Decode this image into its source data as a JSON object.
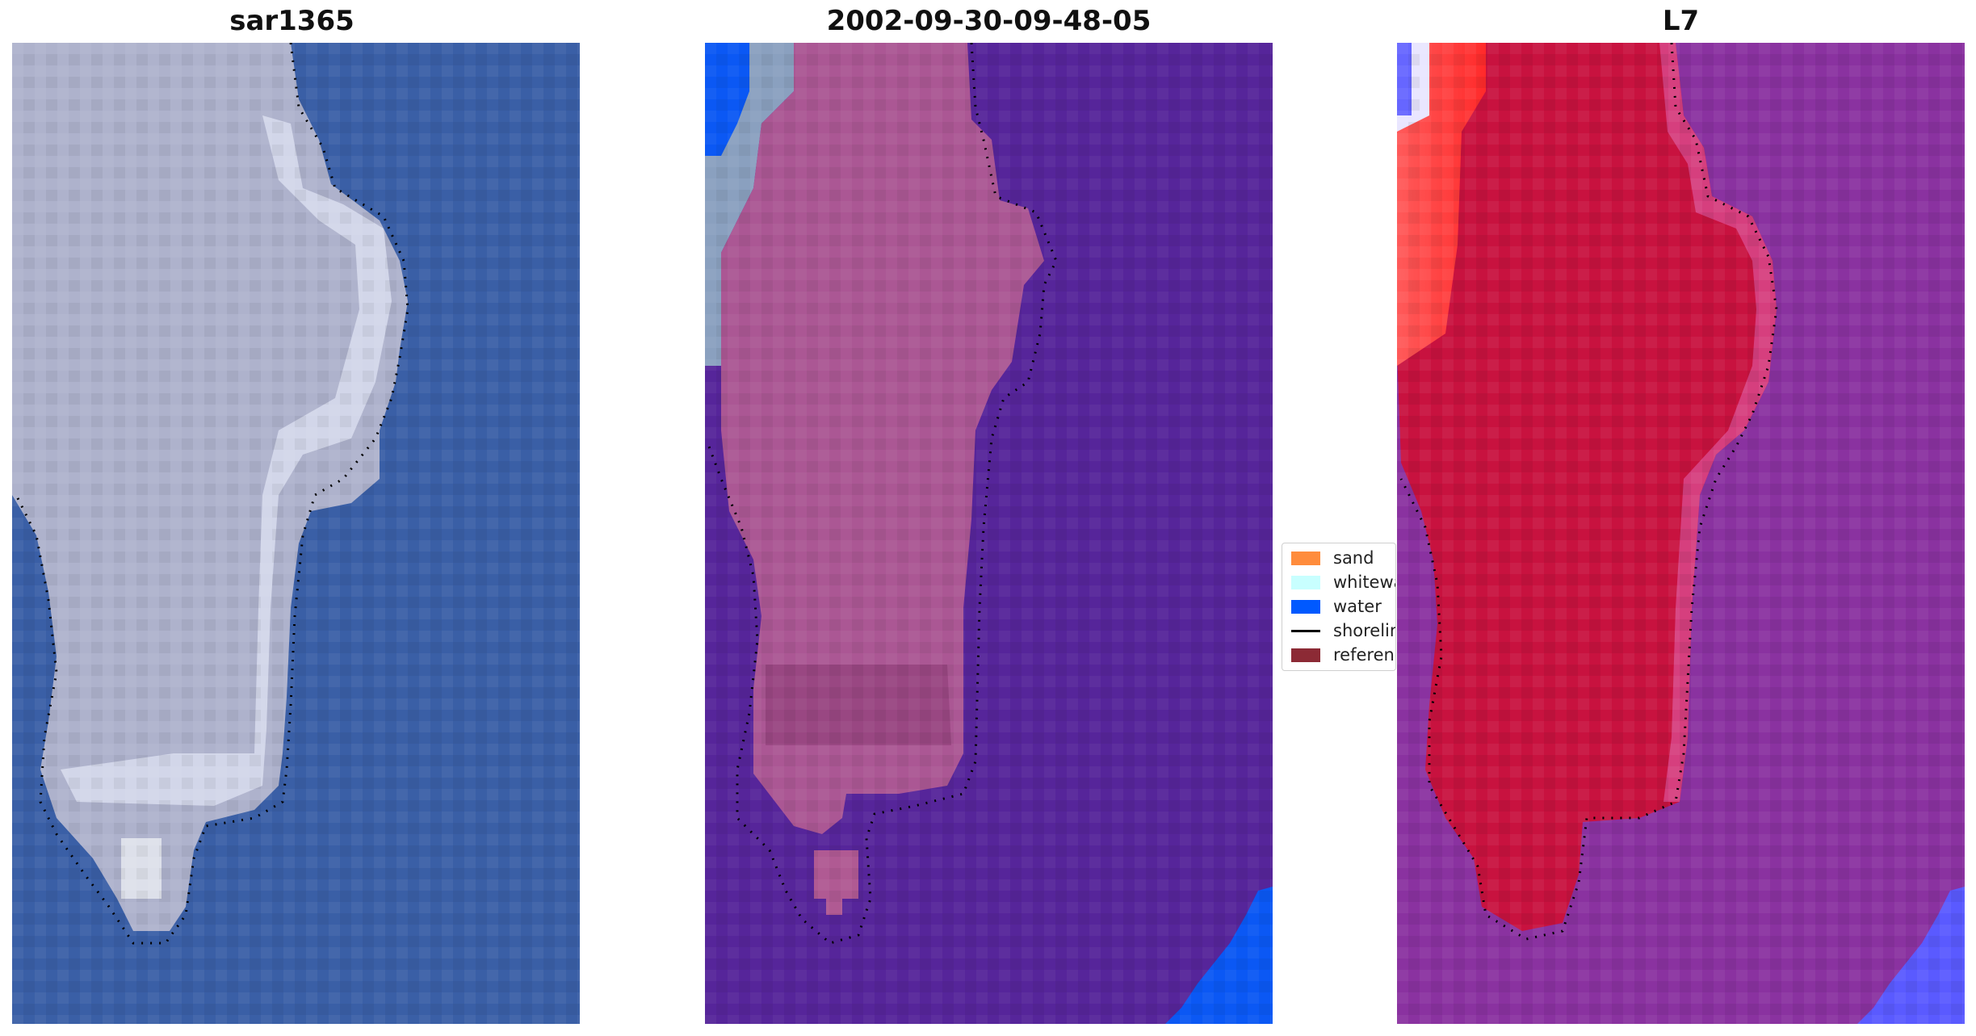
{
  "panels": [
    {
      "title": "sar1365",
      "kind": "rgb-image"
    },
    {
      "title": "2002-09-30-09-48-05",
      "kind": "classified-overlay"
    },
    {
      "title": "L7",
      "kind": "index-map"
    }
  ],
  "legend": {
    "items": [
      {
        "label": "sand",
        "color": "#ff8c3c",
        "type": "patch"
      },
      {
        "label": "whitewater",
        "color": "#c8ffff",
        "type": "patch"
      },
      {
        "label": "water",
        "color": "#0059ff",
        "type": "patch"
      },
      {
        "label": "shoreline",
        "color": "#000000",
        "type": "line"
      },
      {
        "label": "reference",
        "color": "#8c2a35",
        "type": "patch"
      }
    ]
  },
  "colors": {
    "sea_rgb": "#3a5fa6",
    "land_rgb": "#aeb3cd",
    "water_class": "#56259a",
    "reference_overlay": "#b05a93",
    "index_land": "#c8103f",
    "index_sea": "#8a32a0",
    "index_high": "#ff3a3a",
    "index_water_edge": "#5a5aff"
  }
}
